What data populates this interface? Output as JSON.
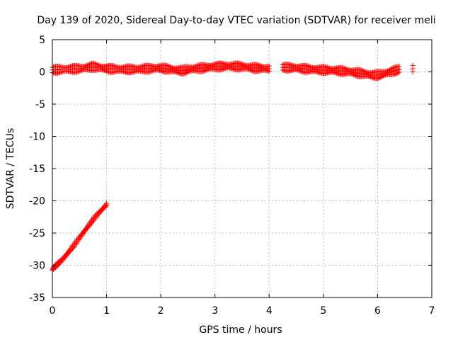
{
  "chart_data": {
    "type": "scatter",
    "title": "Day 139 of 2020, Sidereal Day-to-day VTEC variation (SDTVAR) for receiver meli",
    "xlabel": "GPS time / hours",
    "ylabel": "SDTVAR / TECUs",
    "xlim": [
      0,
      7
    ],
    "ylim": [
      -35,
      5
    ],
    "xticks": [
      "0",
      "1",
      "2",
      "3",
      "4",
      "5",
      "6",
      "7"
    ],
    "yticks": [
      "5",
      "0",
      "-5",
      "-10",
      "-15",
      "-20",
      "-25",
      "-30",
      "-35"
    ],
    "grid": true,
    "marker": "+",
    "color": "#ff0000",
    "series": [
      {
        "name": "upper_band_a",
        "x": [
          0.0,
          0.25,
          0.5,
          0.75,
          1.0,
          1.25,
          1.5,
          1.75,
          2.0,
          2.25,
          2.4,
          2.5,
          2.75,
          3.0,
          3.25,
          3.5,
          3.75,
          4.0
        ],
        "y": [
          0.3,
          0.4,
          0.5,
          0.8,
          0.5,
          0.4,
          0.4,
          0.5,
          0.6,
          0.3,
          0.2,
          0.4,
          0.6,
          0.8,
          0.9,
          0.8,
          0.6,
          0.5
        ],
        "spread": 0.55
      },
      {
        "name": "upper_band_b",
        "x": [
          4.25,
          4.5,
          4.75,
          5.0,
          5.25,
          5.5,
          5.75,
          5.9,
          6.0,
          6.1,
          6.25,
          6.4
        ],
        "y": [
          0.7,
          0.6,
          0.4,
          0.3,
          0.2,
          0.0,
          -0.3,
          -0.5,
          -0.5,
          -0.3,
          0.0,
          0.4
        ],
        "spread": 0.55
      },
      {
        "name": "descending_arc",
        "x": [
          0.0,
          0.2,
          0.4,
          0.6,
          0.8,
          1.0
        ],
        "y": [
          -30.6,
          -29.0,
          -26.9,
          -24.6,
          -22.4,
          -20.6
        ],
        "spread": 0.25
      },
      {
        "name": "isolated_points",
        "x": [
          6.65,
          6.65,
          6.65
        ],
        "y": [
          1.0,
          0.5,
          0.0
        ],
        "spread": 0
      }
    ]
  }
}
